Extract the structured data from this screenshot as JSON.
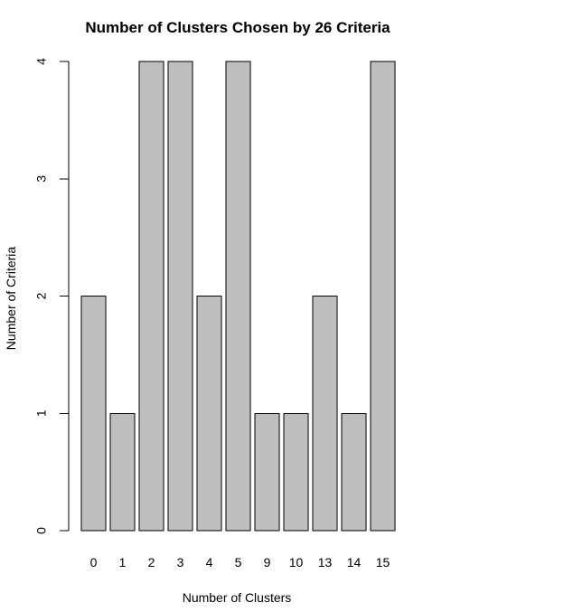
{
  "chart_data": {
    "type": "bar",
    "title": "Number of Clusters Chosen by 26 Criteria",
    "xlabel": "Number of Clusters",
    "ylabel": "Number of Criteria",
    "categories": [
      "0",
      "1",
      "2",
      "3",
      "4",
      "5",
      "9",
      "10",
      "13",
      "14",
      "15"
    ],
    "values": [
      2,
      1,
      4,
      4,
      2,
      4,
      1,
      1,
      2,
      1,
      4
    ],
    "ylim": [
      0,
      4
    ],
    "yticks": [
      0,
      1,
      2,
      3,
      4
    ],
    "grid": false,
    "bar_color": "#bebebe",
    "stroke_color": "#000000"
  }
}
